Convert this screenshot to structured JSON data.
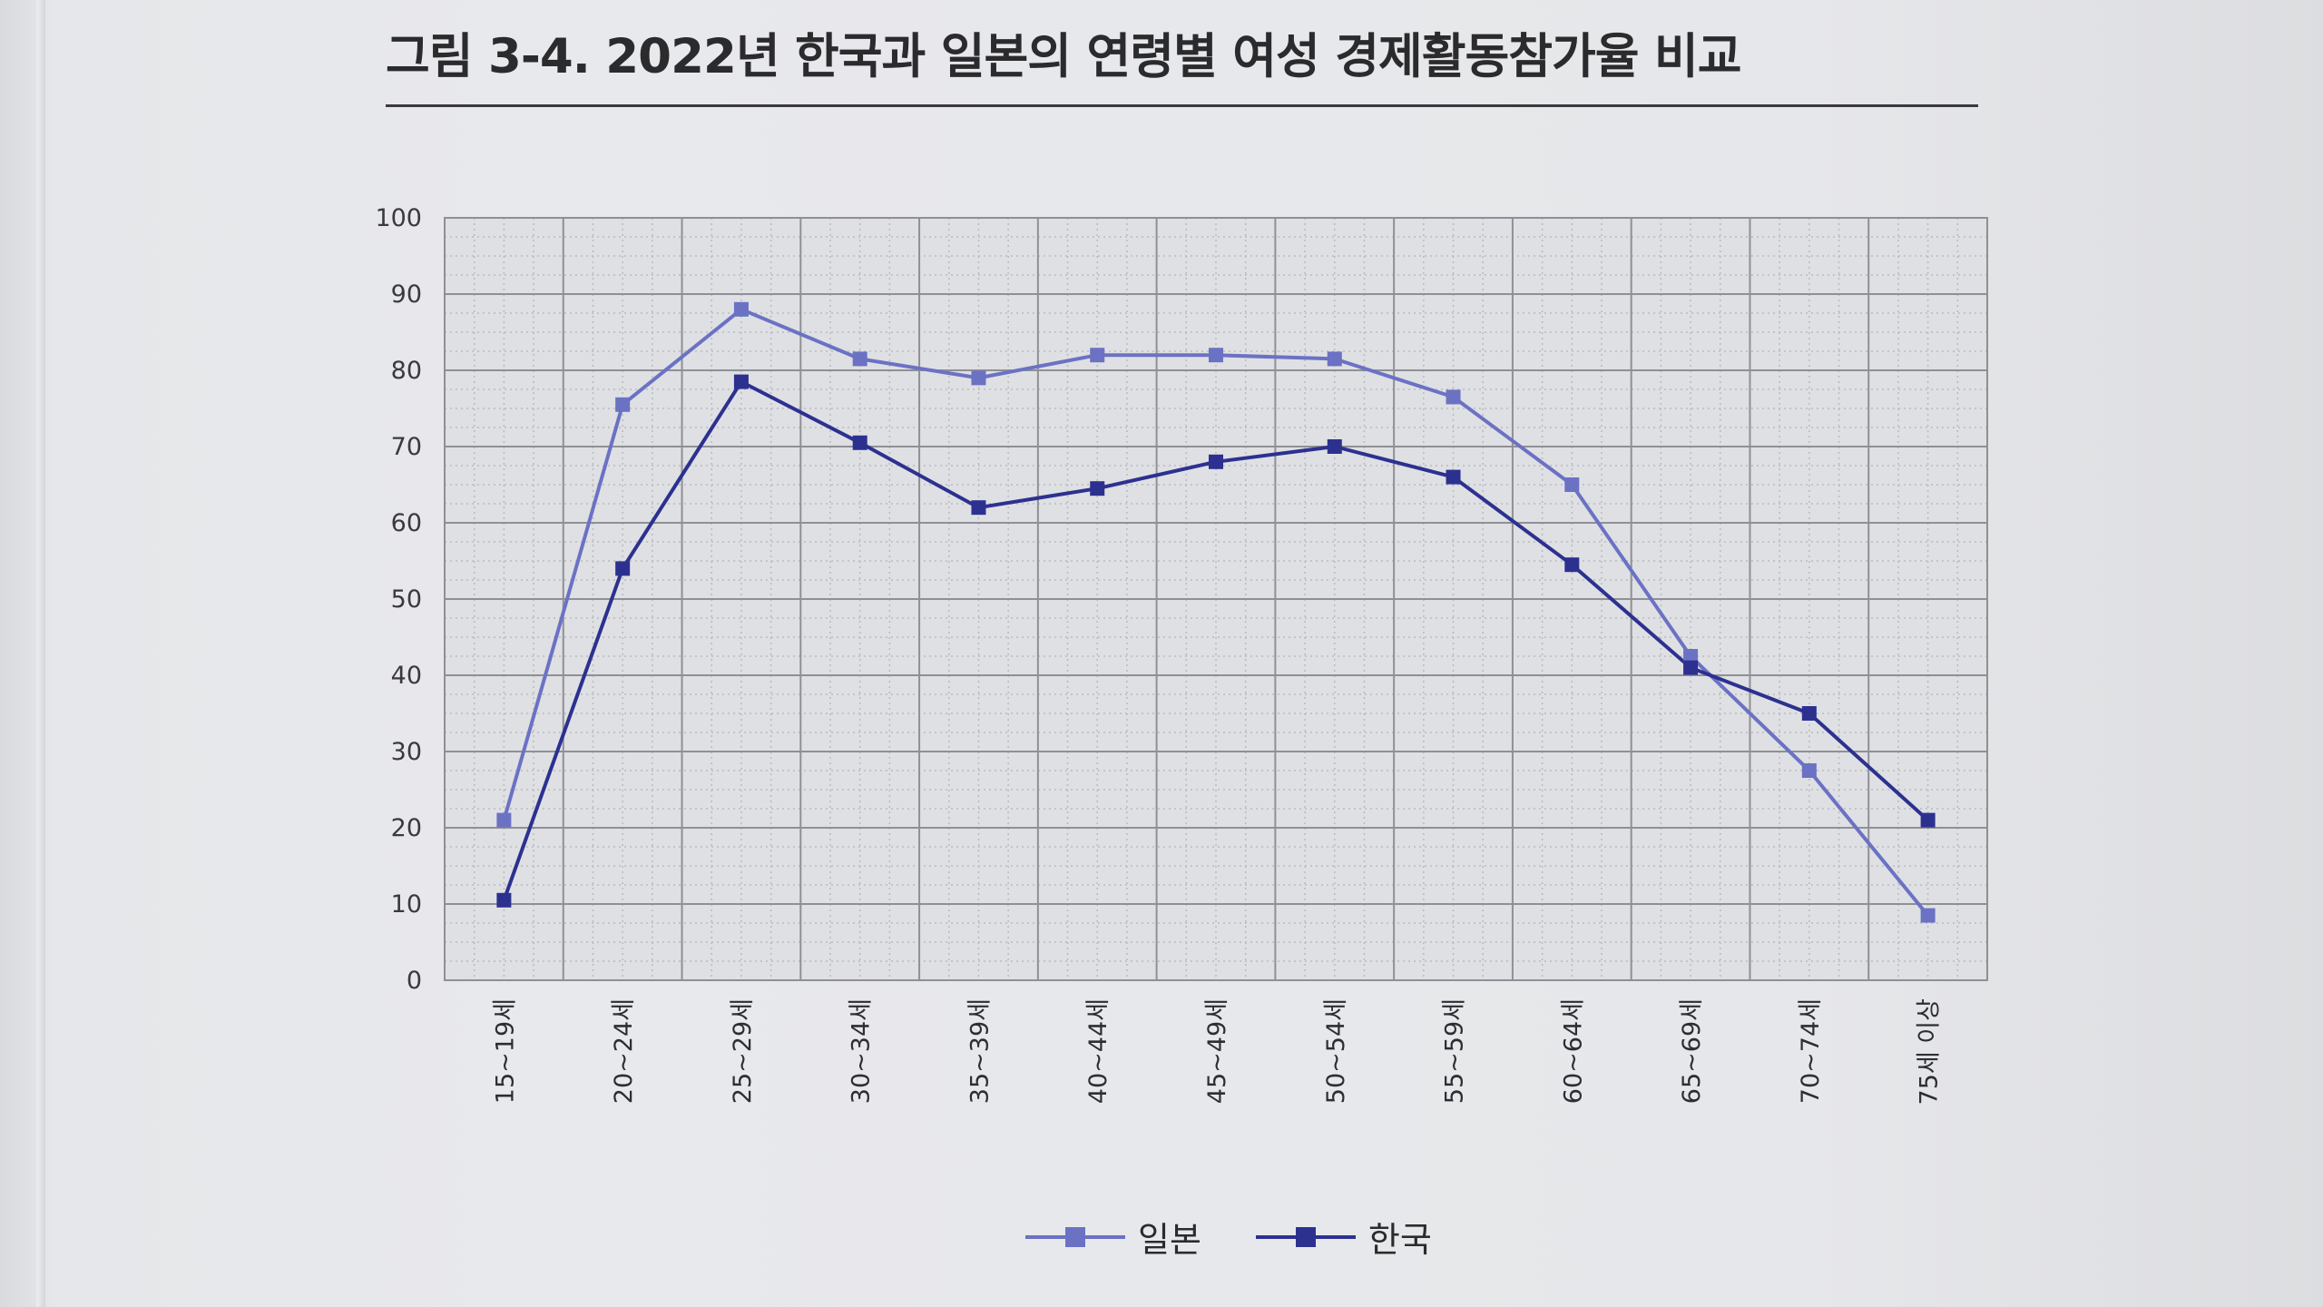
{
  "figure": {
    "title": "그림 3-4. 2022년 한국과 일본의 연령별 여성 경제활동참가율 비교"
  },
  "colors": {
    "japan": "#6b72c4",
    "korea": "#2c3190",
    "grid_major": "#8f9096",
    "grid_minor": "#b9babf",
    "plot_bg": "#dfe0e3"
  },
  "legend": {
    "items": [
      {
        "label": "일본",
        "series": "japan"
      },
      {
        "label": "한국",
        "series": "korea"
      }
    ]
  },
  "chart_data": {
    "type": "line",
    "title": "그림 3-4. 2022년 한국과 일본의 연령별 여성 경제활동참가율 비교",
    "xlabel": "",
    "ylabel": "",
    "ylim": [
      0,
      100
    ],
    "yticks": [
      0,
      10,
      20,
      30,
      40,
      50,
      60,
      70,
      80,
      90,
      100
    ],
    "grid": true,
    "legend_position": "bottom",
    "categories": [
      "15~19세",
      "20~24세",
      "25~29세",
      "30~34세",
      "35~39세",
      "40~44세",
      "45~49세",
      "50~54세",
      "55~59세",
      "60~64세",
      "65~69세",
      "70~74세",
      "75세 이상"
    ],
    "series": [
      {
        "name": "일본",
        "key": "japan",
        "marker": "square",
        "values": [
          21,
          75.5,
          88,
          81.5,
          79,
          82,
          82,
          81.5,
          76.5,
          65,
          42.5,
          27.5,
          8.5
        ]
      },
      {
        "name": "한국",
        "key": "korea",
        "marker": "square",
        "values": [
          10.5,
          54,
          78.5,
          70.5,
          62,
          64.5,
          68,
          70,
          66,
          54.5,
          41,
          35,
          21
        ]
      }
    ]
  }
}
